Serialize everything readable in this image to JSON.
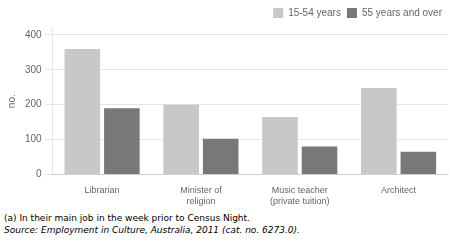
{
  "chart_data": {
    "type": "bar",
    "ylabel": "no.",
    "categories": [
      "Librarian",
      "Minister of\nreligion",
      "Music teacher\n(private tuition)",
      "Architect"
    ],
    "series": [
      {
        "name": "15-54 years",
        "color": "#c8c8c8",
        "values": [
          360,
          200,
          165,
          248
        ]
      },
      {
        "name": "55 years and over",
        "color": "#787878",
        "values": [
          190,
          102,
          80,
          65
        ]
      }
    ],
    "ylim": [
      0,
      420
    ],
    "yticks": [
      0,
      100,
      200,
      300,
      400
    ],
    "grid": true,
    "legend": "upper right",
    "annotations": [
      "(a) In their main job in the week prior to Census Night.",
      "Source: Employment in Culture, Australia, 2011 (cat. no. 6273.0)."
    ]
  }
}
